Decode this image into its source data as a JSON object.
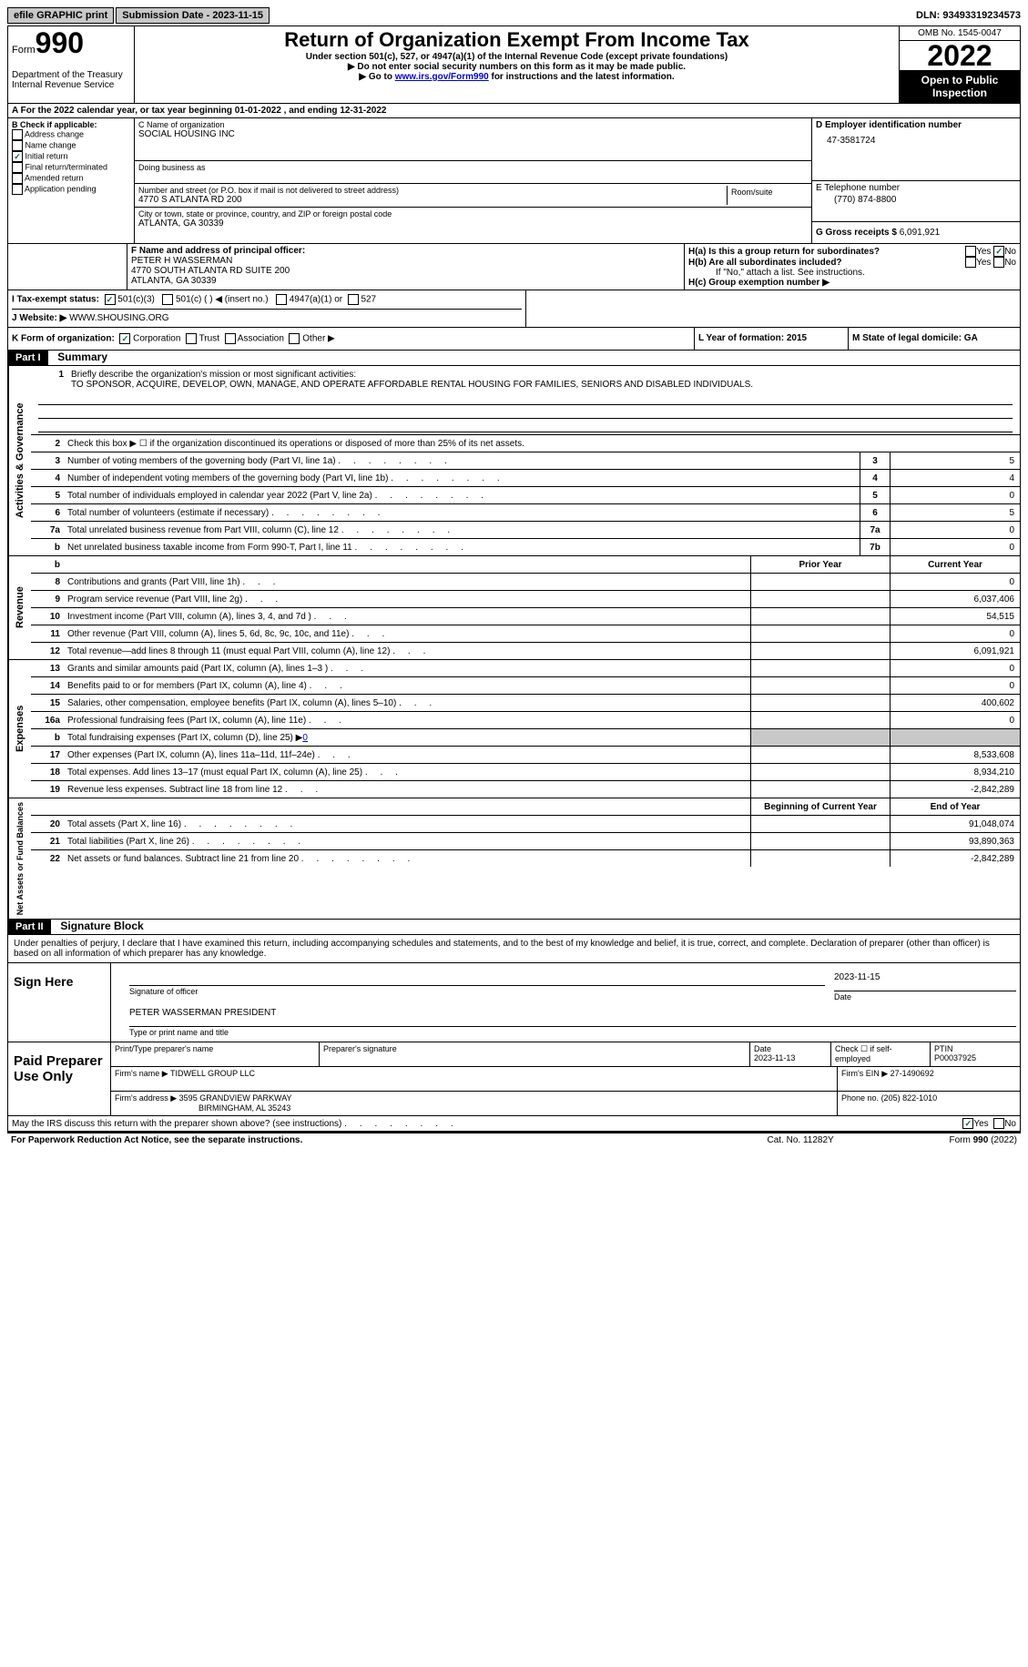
{
  "top": {
    "efile": "efile GRAPHIC print",
    "submission": "Submission Date - 2023-11-15",
    "dln": "DLN: 93493319234573"
  },
  "header": {
    "form_label": "Form",
    "form_num": "990",
    "dept": "Department of the Treasury Internal Revenue Service",
    "title": "Return of Organization Exempt From Income Tax",
    "sub1": "Under section 501(c), 527, or 4947(a)(1) of the Internal Revenue Code (except private foundations)",
    "sub2": "▶ Do not enter social security numbers on this form as it may be made public.",
    "sub3_pre": "▶ Go to ",
    "sub3_link": "www.irs.gov/Form990",
    "sub3_post": " for instructions and the latest information.",
    "omb": "OMB No. 1545-0047",
    "year": "2022",
    "open_pub": "Open to Public Inspection"
  },
  "a": {
    "text": "A For the 2022 calendar year, or tax year beginning 01-01-2022   , and ending 12-31-2022"
  },
  "b": {
    "label": "B Check if applicable:",
    "opts": [
      "Address change",
      "Name change",
      "Initial return",
      "Final return/terminated",
      "Amended return",
      "Application pending"
    ]
  },
  "c": {
    "name_label": "C Name of organization",
    "name": "SOCIAL HOUSING INC",
    "dba_label": "Doing business as",
    "addr_label": "Number and street (or P.O. box if mail is not delivered to street address)",
    "addr": "4770 S ATLANTA RD 200",
    "room_label": "Room/suite",
    "city_label": "City or town, state or province, country, and ZIP or foreign postal code",
    "city": "ATLANTA, GA  30339"
  },
  "d": {
    "label": "D Employer identification number",
    "ein": "47-3581724"
  },
  "e": {
    "label": "E Telephone number",
    "phone": "(770) 874-8800"
  },
  "g": {
    "label": "G Gross receipts $",
    "val": "6,091,921"
  },
  "f": {
    "label": "F  Name and address of principal officer:",
    "name": "PETER H WASSERMAN",
    "addr1": "4770 SOUTH ATLANTA RD SUITE 200",
    "addr2": "ATLANTA, GA  30339"
  },
  "h": {
    "a_label": "H(a)  Is this a group return for subordinates?",
    "b_label": "H(b)  Are all subordinates included?",
    "b_note": "If \"No,\" attach a list. See instructions.",
    "c_label": "H(c)  Group exemption number ▶",
    "yes": "Yes",
    "no": "No"
  },
  "i": {
    "label": "I   Tax-exempt status:",
    "opt1": "501(c)(3)",
    "opt2": "501(c) (  ) ◀ (insert no.)",
    "opt3": "4947(a)(1) or",
    "opt4": "527"
  },
  "j": {
    "label": "J   Website: ▶",
    "val": "  WWW.SHOUSING.ORG"
  },
  "k": {
    "label": "K Form of organization:",
    "corp": "Corporation",
    "trust": "Trust",
    "assoc": "Association",
    "other": "Other ▶"
  },
  "l": {
    "label": "L Year of formation: 2015"
  },
  "m": {
    "label": "M State of legal domicile: GA"
  },
  "part1": {
    "header": "Part I",
    "title": "Summary",
    "line1_label": "Briefly describe the organization's mission or most significant activities:",
    "mission": "TO SPONSOR, ACQUIRE, DEVELOP, OWN, MANAGE, AND OPERATE AFFORDABLE RENTAL HOUSING FOR FAMILIES, SENIORS AND DISABLED INDIVIDUALS.",
    "line2": "Check this box ▶ ☐ if the organization discontinued its operations or disposed of more than 25% of its net assets.",
    "lines_ag": [
      {
        "n": "3",
        "t": "Number of voting members of the governing body (Part VI, line 1a)",
        "box": "3",
        "v": "5"
      },
      {
        "n": "4",
        "t": "Number of independent voting members of the governing body (Part VI, line 1b)",
        "box": "4",
        "v": "4"
      },
      {
        "n": "5",
        "t": "Total number of individuals employed in calendar year 2022 (Part V, line 2a)",
        "box": "5",
        "v": "0"
      },
      {
        "n": "6",
        "t": "Total number of volunteers (estimate if necessary)",
        "box": "6",
        "v": "5"
      },
      {
        "n": "7a",
        "t": "Total unrelated business revenue from Part VIII, column (C), line 12",
        "box": "7a",
        "v": "0"
      },
      {
        "n": "b",
        "t": "Net unrelated business taxable income from Form 990-T, Part I, line 11",
        "box": "7b",
        "v": "0"
      }
    ],
    "prior": "Prior Year",
    "current": "Current Year",
    "rev": [
      {
        "n": "8",
        "t": "Contributions and grants (Part VIII, line 1h)",
        "p": "",
        "c": "0"
      },
      {
        "n": "9",
        "t": "Program service revenue (Part VIII, line 2g)",
        "p": "",
        "c": "6,037,406"
      },
      {
        "n": "10",
        "t": "Investment income (Part VIII, column (A), lines 3, 4, and 7d )",
        "p": "",
        "c": "54,515"
      },
      {
        "n": "11",
        "t": "Other revenue (Part VIII, column (A), lines 5, 6d, 8c, 9c, 10c, and 11e)",
        "p": "",
        "c": "0"
      },
      {
        "n": "12",
        "t": "Total revenue—add lines 8 through 11 (must equal Part VIII, column (A), line 12)",
        "p": "",
        "c": "6,091,921"
      }
    ],
    "exp": [
      {
        "n": "13",
        "t": "Grants and similar amounts paid (Part IX, column (A), lines 1–3 )",
        "p": "",
        "c": "0"
      },
      {
        "n": "14",
        "t": "Benefits paid to or for members (Part IX, column (A), line 4)",
        "p": "",
        "c": "0"
      },
      {
        "n": "15",
        "t": "Salaries, other compensation, employee benefits (Part IX, column (A), lines 5–10)",
        "p": "",
        "c": "400,602"
      },
      {
        "n": "16a",
        "t": "Professional fundraising fees (Part IX, column (A), line 11e)",
        "p": "",
        "c": "0"
      },
      {
        "n": "b",
        "t": "Total fundraising expenses (Part IX, column (D), line 25) ▶0",
        "grey": true
      },
      {
        "n": "17",
        "t": "Other expenses (Part IX, column (A), lines 11a–11d, 11f–24e)",
        "p": "",
        "c": "8,533,608"
      },
      {
        "n": "18",
        "t": "Total expenses. Add lines 13–17 (must equal Part IX, column (A), line 25)",
        "p": "",
        "c": "8,934,210"
      },
      {
        "n": "19",
        "t": "Revenue less expenses. Subtract line 18 from line 12",
        "p": "",
        "c": "-2,842,289"
      }
    ],
    "begin": "Beginning of Current Year",
    "end": "End of Year",
    "net": [
      {
        "n": "20",
        "t": "Total assets (Part X, line 16)",
        "p": "",
        "c": "91,048,074"
      },
      {
        "n": "21",
        "t": "Total liabilities (Part X, line 26)",
        "p": "",
        "c": "93,890,363"
      },
      {
        "n": "22",
        "t": "Net assets or fund balances. Subtract line 21 from line 20",
        "p": "",
        "c": "-2,842,289"
      }
    ],
    "vert_ag": "Activities & Governance",
    "vert_rev": "Revenue",
    "vert_exp": "Expenses",
    "vert_net": "Net Assets or Fund Balances"
  },
  "part2": {
    "header": "Part II",
    "title": "Signature Block",
    "decl": "Under penalties of perjury, I declare that I have examined this return, including accompanying schedules and statements, and to the best of my knowledge and belief, it is true, correct, and complete. Declaration of preparer (other than officer) is based on all information of which preparer has any knowledge.",
    "sign_here": "Sign Here",
    "sig_officer": "Signature of officer",
    "sig_date": "2023-11-15",
    "date_label": "Date",
    "name_title": "PETER WASSERMAN  PRESIDENT",
    "name_title_label": "Type or print name and title",
    "paid": "Paid Preparer Use Only",
    "prep_name_label": "Print/Type preparer's name",
    "prep_sig_label": "Preparer's signature",
    "prep_date_label": "Date",
    "prep_date": "2023-11-13",
    "check_se": "Check ☐ if self-employed",
    "ptin_label": "PTIN",
    "ptin": "P00037925",
    "firm_name_label": "Firm's name      ▶",
    "firm_name": "TIDWELL GROUP LLC",
    "firm_ein_label": "Firm's EIN ▶",
    "firm_ein": "27-1490692",
    "firm_addr_label": "Firm's address ▶",
    "firm_addr1": "3595 GRANDVIEW PARKWAY",
    "firm_addr2": "BIRMINGHAM, AL  35243",
    "phone_label": "Phone no.",
    "phone": "(205) 822-1010",
    "discuss": "May the IRS discuss this return with the preparer shown above? (see instructions)",
    "yes": "Yes",
    "no": "No"
  },
  "footer": {
    "pra": "For Paperwork Reduction Act Notice, see the separate instructions.",
    "cat": "Cat. No. 11282Y",
    "form": "Form 990 (2022)"
  }
}
